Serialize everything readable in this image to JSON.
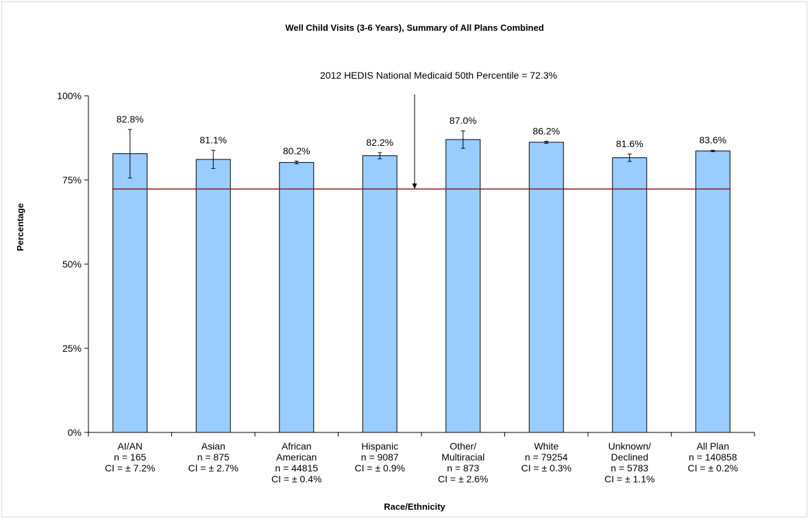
{
  "chart_data": {
    "type": "bar",
    "title": "Well Child Visits (3-6 Years), Summary of All Plans Combined",
    "xlabel": "Race/Ethnicity",
    "ylabel": "Percentage",
    "ylim": [
      0,
      100
    ],
    "yticks": [
      "0%",
      "25%",
      "50%",
      "75%",
      "100%"
    ],
    "ytick_values": [
      0,
      25,
      50,
      75,
      100
    ],
    "grid": false,
    "bar_color": "#99ccff",
    "reference_color": "#8b1a1a",
    "categories": [
      [
        "AI/AN",
        "n = 165",
        "CI = ± 7.2%"
      ],
      [
        "Asian",
        "n = 875",
        "CI = ± 2.7%"
      ],
      [
        "African",
        "American",
        "n = 44815",
        "CI = ± 0.4%"
      ],
      [
        "Hispanic",
        "n = 9087",
        "CI = ± 0.9%"
      ],
      [
        "Other/",
        "Multiracial",
        "n = 873",
        "CI = ± 2.6%"
      ],
      [
        "White",
        "n = 79254",
        "CI = ± 0.3%"
      ],
      [
        "Unknown/",
        "Declined",
        "n = 5783",
        "CI = ± 1.1%"
      ],
      [
        "All Plan",
        "n = 140858",
        "CI = ± 0.2%"
      ]
    ],
    "values": [
      82.8,
      81.1,
      80.2,
      82.2,
      87.0,
      86.2,
      81.6,
      83.6
    ],
    "ci": [
      7.2,
      2.7,
      0.4,
      0.9,
      2.6,
      0.3,
      1.1,
      0.2
    ],
    "data_labels": [
      "82.8%",
      "81.1%",
      "80.2%",
      "82.2%",
      "87.0%",
      "86.2%",
      "81.6%",
      "83.6%"
    ],
    "reference": {
      "value": 72.3,
      "label": "2012 HEDIS National Medicaid 50th Percentile = 72.3%"
    }
  }
}
